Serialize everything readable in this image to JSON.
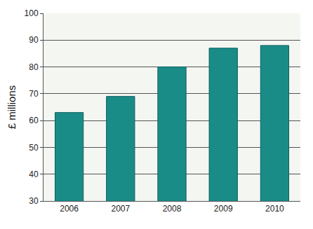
{
  "chart_data": {
    "type": "bar",
    "y_label": "£ millions",
    "categories": [
      "2006",
      "2007",
      "2008",
      "2009",
      "2010"
    ],
    "values": [
      63,
      69,
      80,
      87,
      88
    ],
    "color": "#1a8c88",
    "ylim": [
      30,
      100
    ],
    "yticks": [
      30,
      40,
      50,
      60,
      70,
      80,
      90,
      100
    ],
    "grid": true
  }
}
